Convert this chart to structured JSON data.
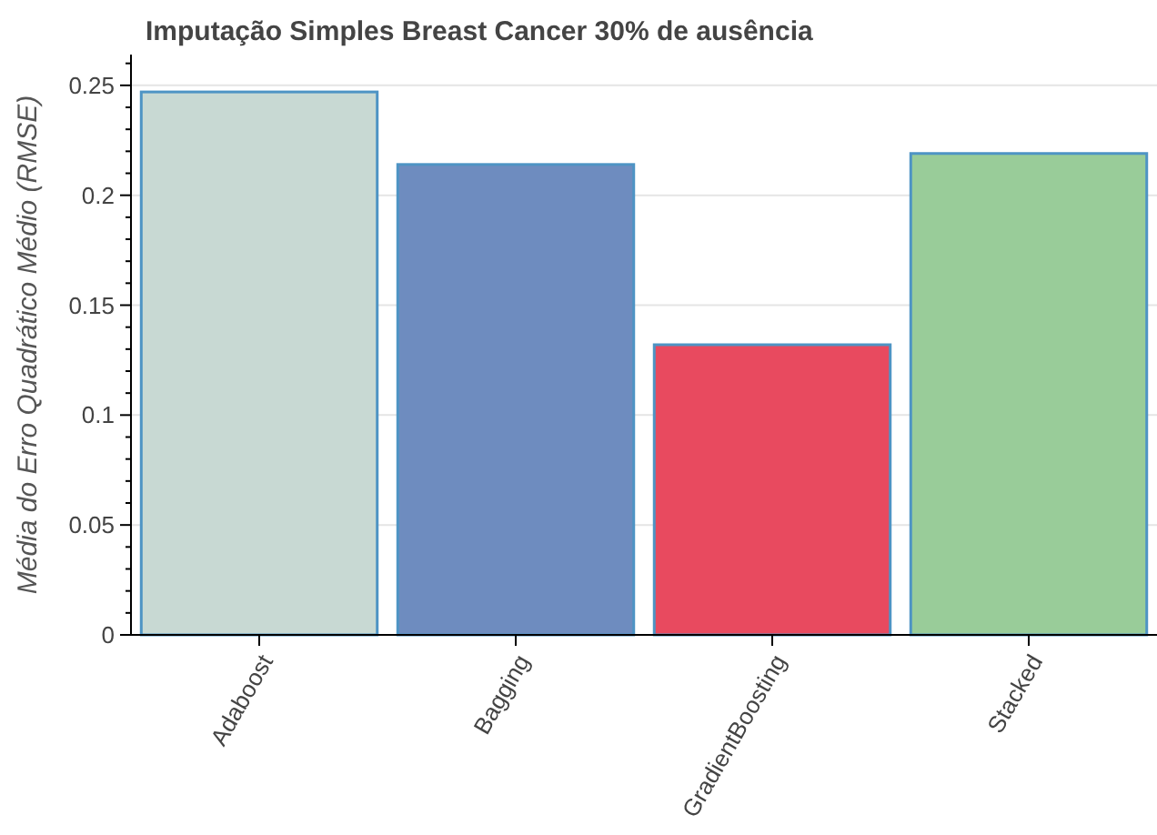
{
  "chart_data": {
    "type": "bar",
    "title": "Imputação Simples Breast Cancer 30% de ausência",
    "ylabel": "Média do Erro Quadrático Médio (RMSE)",
    "categories": [
      "Adaboost",
      "Bagging",
      "GradientBoosting",
      "Stacked"
    ],
    "values": [
      0.247,
      0.214,
      0.132,
      0.219
    ],
    "colors": [
      "#c8d9d3",
      "#6e8cbf",
      "#e84a5f",
      "#99cc99"
    ],
    "ylim": [
      0,
      0.264
    ],
    "yticks": [
      0,
      {
        "value": 0.01,
        "label": null
      },
      {
        "value": 0.02,
        "label": null
      },
      {
        "value": 0.03,
        "label": null
      },
      {
        "value": 0.04,
        "label": null
      },
      {
        "value": 0.05,
        "label": "0.05"
      },
      {
        "value": 0.06,
        "label": null
      },
      {
        "value": 0.07,
        "label": null
      },
      {
        "value": 0.08,
        "label": null
      },
      {
        "value": 0.09,
        "label": null
      },
      0.1,
      {
        "value": 0.11,
        "label": null
      },
      {
        "value": 0.12,
        "label": null
      },
      {
        "value": 0.13,
        "label": null
      },
      {
        "value": 0.14,
        "label": null
      },
      0.15,
      {
        "value": 0.16,
        "label": null
      },
      {
        "value": 0.17,
        "label": null
      },
      {
        "value": 0.18,
        "label": null
      },
      {
        "value": 0.19,
        "label": null
      },
      0.2,
      {
        "value": 0.21,
        "label": null
      },
      {
        "value": 0.22,
        "label": null
      },
      {
        "value": 0.23,
        "label": null
      },
      {
        "value": 0.24,
        "label": null
      },
      0.25,
      {
        "value": 0.26,
        "label": null
      }
    ],
    "grid": "y"
  }
}
